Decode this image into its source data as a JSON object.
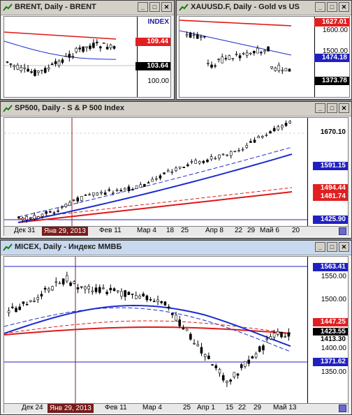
{
  "windows": {
    "brent": {
      "title": "BRENT, Daily - BRENT",
      "scale_header": "INDEX",
      "scale_labels": [
        "100.00"
      ],
      "tags": [
        {
          "text": "109.44",
          "bg": "#e02020",
          "fg": "#ffffff"
        },
        {
          "text": "103.64",
          "bg": "#000000",
          "fg": "#ffffff",
          "marker": "▲"
        }
      ]
    },
    "gold": {
      "title": "XAUUSD.F, Daily - Gold vs US",
      "scale_labels": [
        "1600.00",
        "1500.00"
      ],
      "tags": [
        {
          "text": "1627.01",
          "bg": "#e02020",
          "fg": "#ffffff"
        },
        {
          "text": "1474.18",
          "bg": "#2020c0",
          "fg": "#ffffff"
        },
        {
          "text": "1373.78",
          "bg": "#000000",
          "fg": "#ffffff"
        }
      ]
    },
    "sp500": {
      "title": "SP500, Daily - S & P 500 Index",
      "tags": [
        {
          "text": "1670.10",
          "bg": "#ffffff",
          "fg": "#000000"
        },
        {
          "text": "1591.15",
          "bg": "#2020c0",
          "fg": "#ffffff"
        },
        {
          "text": "1494.44",
          "bg": "#e02020",
          "fg": "#ffffff"
        },
        {
          "text": "1481.74",
          "bg": "#e02020",
          "fg": "#ffffff"
        },
        {
          "text": "1425.90",
          "bg": "#2020c0",
          "fg": "#ffffff"
        }
      ],
      "x_labels": [
        "Дек 31",
        "Фев 11",
        "Мар 4",
        "18",
        "25",
        "Апр 8",
        "22",
        "29",
        "Май 6",
        "20"
      ],
      "cursor_date": "Янв 29, 2013"
    },
    "micex": {
      "title": "MICEX, Daily - Индекс ММВБ",
      "scale_labels": [
        "1550.00",
        "1500.00",
        "1400.00",
        "1350.00"
      ],
      "tags": [
        {
          "text": "1563.41",
          "bg": "#2020c0",
          "fg": "#ffffff"
        },
        {
          "text": "1447.25",
          "bg": "#e02020",
          "fg": "#ffffff"
        },
        {
          "text": "1423.55",
          "bg": "#000000",
          "fg": "#ffffff"
        },
        {
          "text": "1413.30",
          "bg": "#ffffff",
          "fg": "#000000"
        },
        {
          "text": "1371.62",
          "bg": "#2020c0",
          "fg": "#ffffff"
        }
      ],
      "x_labels": [
        "Дек 24",
        "Фев 11",
        "Мар 4",
        "25",
        "Апр 1",
        "15",
        "22",
        "29",
        "Май 13"
      ],
      "cursor_date": "Янв 29, 2013"
    }
  },
  "title_buttons": {
    "minimize": "_",
    "maximize": "□",
    "close": "✕"
  },
  "colors": {
    "up": "#000000",
    "down": "#000000",
    "ma_blue": "#1c2cd0",
    "ma_red": "#e01818"
  }
}
